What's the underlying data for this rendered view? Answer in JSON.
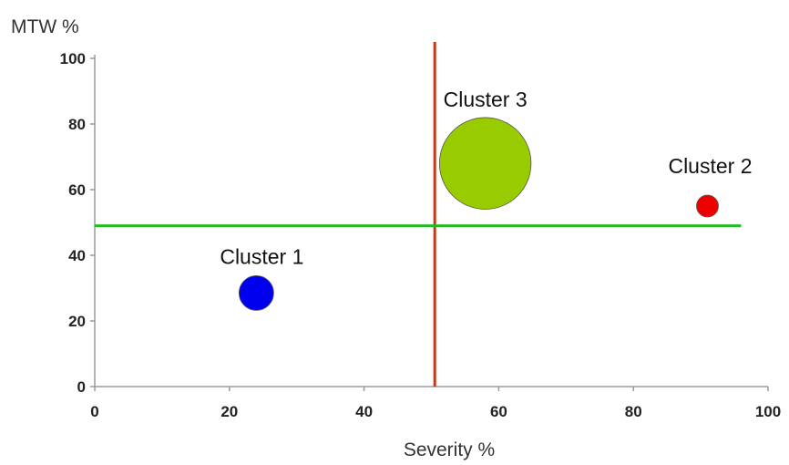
{
  "chart_data": {
    "type": "scatter",
    "xlabel": "Severity %",
    "ylabel": "MTW %",
    "xlim": [
      0,
      100
    ],
    "ylim": [
      0,
      100
    ],
    "x_ticks": [
      0,
      20,
      40,
      60,
      80,
      100
    ],
    "y_ticks": [
      0,
      20,
      40,
      60,
      80,
      100
    ],
    "grid": false,
    "series": [
      {
        "name": "Cluster 1",
        "x": 24,
        "y": 28.5,
        "size": 1,
        "color": "#0000ee"
      },
      {
        "name": "Cluster 2",
        "x": 91,
        "y": 55,
        "size": 0.4,
        "color": "#ee0000"
      },
      {
        "name": "Cluster 3",
        "x": 58,
        "y": 68,
        "size": 7,
        "color": "#99cc00"
      }
    ],
    "reference_lines": [
      {
        "orientation": "vertical",
        "x": 50.5,
        "y_range": [
          0,
          105
        ],
        "color": "#c0391b"
      },
      {
        "orientation": "horizontal",
        "y": 49,
        "x_range": [
          0,
          96
        ],
        "color": "#22bb22"
      }
    ]
  }
}
